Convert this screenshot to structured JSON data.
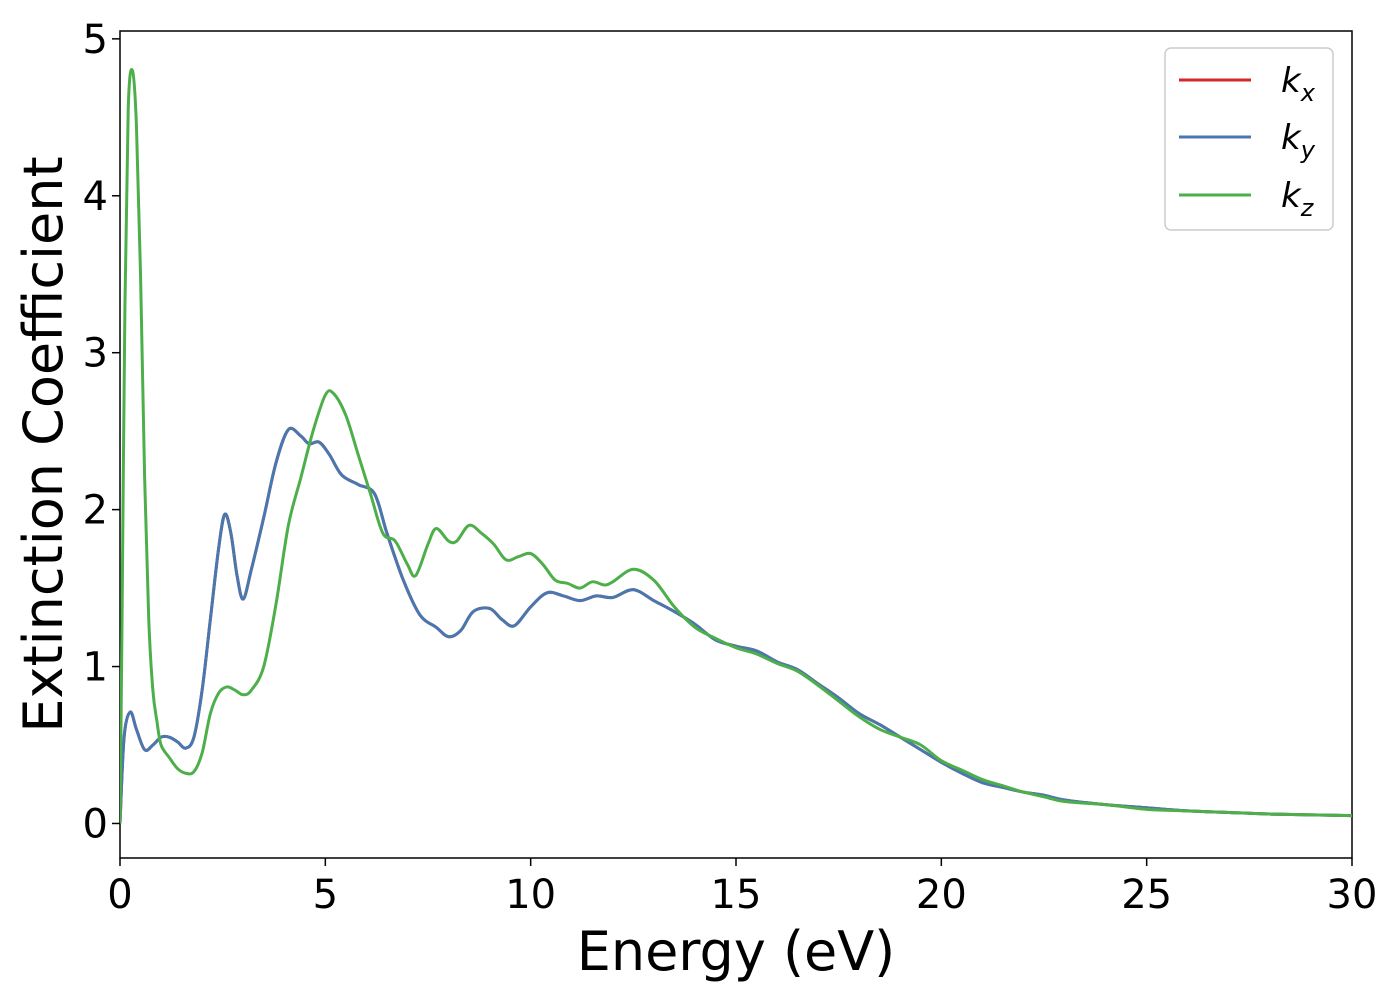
{
  "chart_data": {
    "type": "line",
    "title": "",
    "xlabel": "Energy (eV)",
    "ylabel": "Extinction Coefficient",
    "xlim": [
      0,
      30
    ],
    "ylim": [
      -0.22,
      5.05
    ],
    "xticks": [
      0,
      5,
      10,
      15,
      20,
      25,
      30
    ],
    "yticks": [
      0,
      1,
      2,
      3,
      4,
      5
    ],
    "grid": false,
    "legend_position": "top-right",
    "series": [
      {
        "name": "k",
        "subscript": "x",
        "color": "#d62728",
        "x": [
          0,
          0.1,
          0.25,
          0.4,
          0.6,
          0.8,
          1.0,
          1.2,
          1.4,
          1.6,
          1.8,
          2.0,
          2.2,
          2.4,
          2.55,
          2.7,
          2.85,
          3.0,
          3.2,
          3.5,
          3.8,
          4.1,
          4.4,
          4.6,
          4.85,
          5.1,
          5.4,
          5.8,
          6.2,
          6.5,
          6.9,
          7.3,
          7.7,
          8.0,
          8.3,
          8.6,
          9.0,
          9.3,
          9.6,
          10.0,
          10.4,
          10.8,
          11.2,
          11.6,
          12.0,
          12.5,
          13.0,
          13.5,
          14.0,
          14.5,
          15.0,
          15.5,
          16.0,
          16.5,
          17.0,
          17.5,
          18.0,
          18.5,
          19.0,
          19.5,
          20.0,
          20.5,
          21.0,
          21.5,
          22.0,
          22.5,
          23.0,
          24.0,
          25.0,
          26.0,
          27.0,
          28.0,
          29.0,
          30.0
        ],
        "values": [
          0,
          0.55,
          0.71,
          0.6,
          0.47,
          0.5,
          0.55,
          0.55,
          0.52,
          0.48,
          0.55,
          0.85,
          1.3,
          1.75,
          1.97,
          1.85,
          1.58,
          1.43,
          1.62,
          1.95,
          2.3,
          2.51,
          2.47,
          2.42,
          2.43,
          2.35,
          2.22,
          2.16,
          2.1,
          1.85,
          1.55,
          1.33,
          1.25,
          1.19,
          1.23,
          1.35,
          1.37,
          1.3,
          1.26,
          1.38,
          1.47,
          1.45,
          1.42,
          1.45,
          1.44,
          1.49,
          1.42,
          1.35,
          1.27,
          1.17,
          1.13,
          1.1,
          1.03,
          0.98,
          0.89,
          0.8,
          0.7,
          0.63,
          0.55,
          0.47,
          0.39,
          0.32,
          0.26,
          0.23,
          0.2,
          0.18,
          0.15,
          0.12,
          0.1,
          0.08,
          0.07,
          0.06,
          0.055,
          0.05
        ]
      },
      {
        "name": "k",
        "subscript": "y",
        "color": "#4878b0",
        "x": [
          0,
          0.1,
          0.25,
          0.4,
          0.6,
          0.8,
          1.0,
          1.2,
          1.4,
          1.6,
          1.8,
          2.0,
          2.2,
          2.4,
          2.55,
          2.7,
          2.85,
          3.0,
          3.2,
          3.5,
          3.8,
          4.1,
          4.4,
          4.6,
          4.85,
          5.1,
          5.4,
          5.8,
          6.2,
          6.5,
          6.9,
          7.3,
          7.7,
          8.0,
          8.3,
          8.6,
          9.0,
          9.3,
          9.6,
          10.0,
          10.4,
          10.8,
          11.2,
          11.6,
          12.0,
          12.5,
          13.0,
          13.5,
          14.0,
          14.5,
          15.0,
          15.5,
          16.0,
          16.5,
          17.0,
          17.5,
          18.0,
          18.5,
          19.0,
          19.5,
          20.0,
          20.5,
          21.0,
          21.5,
          22.0,
          22.5,
          23.0,
          24.0,
          25.0,
          26.0,
          27.0,
          28.0,
          29.0,
          30.0
        ],
        "values": [
          0,
          0.55,
          0.71,
          0.6,
          0.47,
          0.5,
          0.55,
          0.55,
          0.52,
          0.48,
          0.55,
          0.85,
          1.3,
          1.75,
          1.97,
          1.85,
          1.58,
          1.43,
          1.62,
          1.95,
          2.3,
          2.51,
          2.47,
          2.42,
          2.43,
          2.35,
          2.22,
          2.16,
          2.1,
          1.85,
          1.55,
          1.33,
          1.25,
          1.19,
          1.23,
          1.35,
          1.37,
          1.3,
          1.26,
          1.38,
          1.47,
          1.45,
          1.42,
          1.45,
          1.44,
          1.49,
          1.42,
          1.35,
          1.27,
          1.17,
          1.13,
          1.1,
          1.03,
          0.98,
          0.89,
          0.8,
          0.7,
          0.63,
          0.55,
          0.47,
          0.39,
          0.32,
          0.26,
          0.23,
          0.2,
          0.18,
          0.15,
          0.12,
          0.1,
          0.08,
          0.07,
          0.06,
          0.055,
          0.05
        ]
      },
      {
        "name": "k",
        "subscript": "z",
        "color": "#4daf4a",
        "x": [
          0,
          0.05,
          0.12,
          0.2,
          0.3,
          0.4,
          0.5,
          0.6,
          0.7,
          0.8,
          0.9,
          1.0,
          1.2,
          1.4,
          1.6,
          1.8,
          2.0,
          2.2,
          2.4,
          2.6,
          2.8,
          3.0,
          3.2,
          3.5,
          3.8,
          4.1,
          4.4,
          4.7,
          5.0,
          5.2,
          5.5,
          5.8,
          6.1,
          6.4,
          6.7,
          7.0,
          7.2,
          7.5,
          7.7,
          8.0,
          8.2,
          8.5,
          8.8,
          9.1,
          9.4,
          9.7,
          10.0,
          10.3,
          10.6,
          10.9,
          11.2,
          11.5,
          11.8,
          12.0,
          12.5,
          13.0,
          13.5,
          14.0,
          14.5,
          15.0,
          15.5,
          16.0,
          16.5,
          17.0,
          17.5,
          18.0,
          18.5,
          19.0,
          19.5,
          20.0,
          20.5,
          21.0,
          21.5,
          22.0,
          22.5,
          23.0,
          24.0,
          25.0,
          26.0,
          27.0,
          28.0,
          29.0,
          30.0
        ],
        "values": [
          0,
          1.3,
          3.3,
          4.55,
          4.8,
          4.45,
          3.5,
          2.2,
          1.3,
          0.85,
          0.65,
          0.5,
          0.42,
          0.35,
          0.32,
          0.33,
          0.45,
          0.7,
          0.83,
          0.87,
          0.85,
          0.82,
          0.85,
          1.0,
          1.4,
          1.9,
          2.2,
          2.5,
          2.73,
          2.74,
          2.6,
          2.35,
          2.1,
          1.85,
          1.8,
          1.65,
          1.58,
          1.78,
          1.88,
          1.8,
          1.8,
          1.9,
          1.85,
          1.78,
          1.68,
          1.7,
          1.72,
          1.65,
          1.55,
          1.53,
          1.5,
          1.54,
          1.52,
          1.54,
          1.62,
          1.55,
          1.38,
          1.25,
          1.18,
          1.12,
          1.08,
          1.02,
          0.97,
          0.88,
          0.78,
          0.68,
          0.6,
          0.55,
          0.5,
          0.4,
          0.34,
          0.28,
          0.24,
          0.2,
          0.17,
          0.14,
          0.12,
          0.09,
          0.08,
          0.07,
          0.06,
          0.055,
          0.05
        ]
      }
    ]
  }
}
